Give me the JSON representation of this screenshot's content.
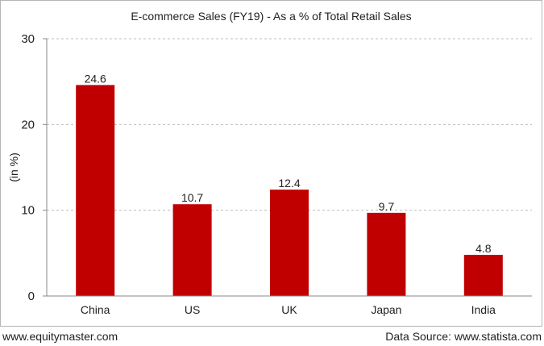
{
  "chart_data": {
    "type": "bar",
    "title": "E-commerce Sales (FY19) - As a % of Total Retail Sales",
    "xlabel": "",
    "ylabel": "(in %)",
    "categories": [
      "China",
      "US",
      "UK",
      "Japan",
      "India"
    ],
    "values": [
      24.6,
      10.7,
      12.4,
      9.7,
      4.8
    ],
    "data_labels": [
      "24.6",
      "10.7",
      "12.4",
      "9.7",
      "4.8"
    ],
    "ylim": [
      0,
      30
    ],
    "yticks": [
      0,
      10,
      20,
      30
    ],
    "grid": true,
    "bar_color": "#c00000"
  },
  "footer": {
    "left": "www.equitymaster.com",
    "right": "Data Source: www.statista.com"
  }
}
